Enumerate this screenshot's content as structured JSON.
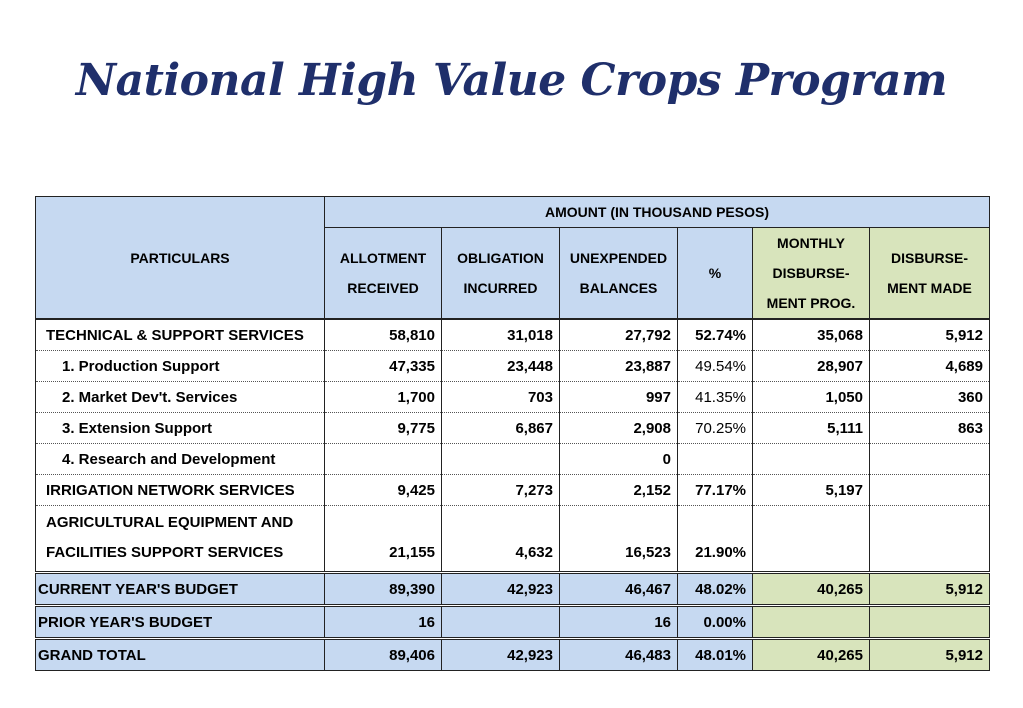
{
  "title": "National High Value Crops Program",
  "table": {
    "header_particulars": "PARTICULARS",
    "header_amount": "AMOUNT (IN THOUSAND PESOS)",
    "columns": [
      "ALLOTMENT RECEIVED",
      "OBLIGATION INCURRED",
      "UNEXPENDED BALANCES",
      "%",
      "MONTHLY DISBURSE-MENT PROG.",
      "DISBURSE-MENT MADE"
    ],
    "rows": [
      {
        "name": "TECHNICAL & SUPPORT SERVICES",
        "allotment": "58,810",
        "obligation": "31,018",
        "unexpended": "27,792",
        "pct": "52.74%",
        "monthly": "35,068",
        "made": "5,912"
      },
      {
        "name": "1. Production Support",
        "allotment": "47,335",
        "obligation": "23,448",
        "unexpended": "23,887",
        "pct": "49.54%",
        "monthly": "28,907",
        "made": "4,689"
      },
      {
        "name": "2. Market Dev't. Services",
        "allotment": "1,700",
        "obligation": "703",
        "unexpended": "997",
        "pct": "41.35%",
        "monthly": "1,050",
        "made": "360"
      },
      {
        "name": "3. Extension Support",
        "allotment": "9,775",
        "obligation": "6,867",
        "unexpended": "2,908",
        "pct": "70.25%",
        "monthly": "5,111",
        "made": "863"
      },
      {
        "name": "4. Research and Development",
        "allotment": "",
        "obligation": "",
        "unexpended": "0",
        "pct": "",
        "monthly": "",
        "made": ""
      },
      {
        "name": "IRRIGATION NETWORK SERVICES",
        "allotment": "9,425",
        "obligation": "7,273",
        "unexpended": "2,152",
        "pct": "77.17%",
        "monthly": "5,197",
        "made": ""
      },
      {
        "name_line1": "AGRICULTURAL EQUIPMENT AND",
        "name_line2": "FACILITIES SUPPORT SERVICES",
        "allotment": "21,155",
        "obligation": "4,632",
        "unexpended": "16,523",
        "pct": "21.90%",
        "monthly": "",
        "made": ""
      }
    ],
    "totals": [
      {
        "name": "CURRENT YEAR'S BUDGET",
        "allotment": "89,390",
        "obligation": "42,923",
        "unexpended": "46,467",
        "pct": "48.02%",
        "monthly": "40,265",
        "made": "5,912"
      },
      {
        "name": "PRIOR YEAR'S BUDGET",
        "allotment": "16",
        "obligation": "",
        "unexpended": "16",
        "pct": "0.00%",
        "monthly": "",
        "made": ""
      },
      {
        "name": "GRAND TOTAL",
        "allotment": "89,406",
        "obligation": "42,923",
        "unexpended": "46,483",
        "pct": "48.01%",
        "monthly": "40,265",
        "made": "5,912"
      }
    ]
  }
}
